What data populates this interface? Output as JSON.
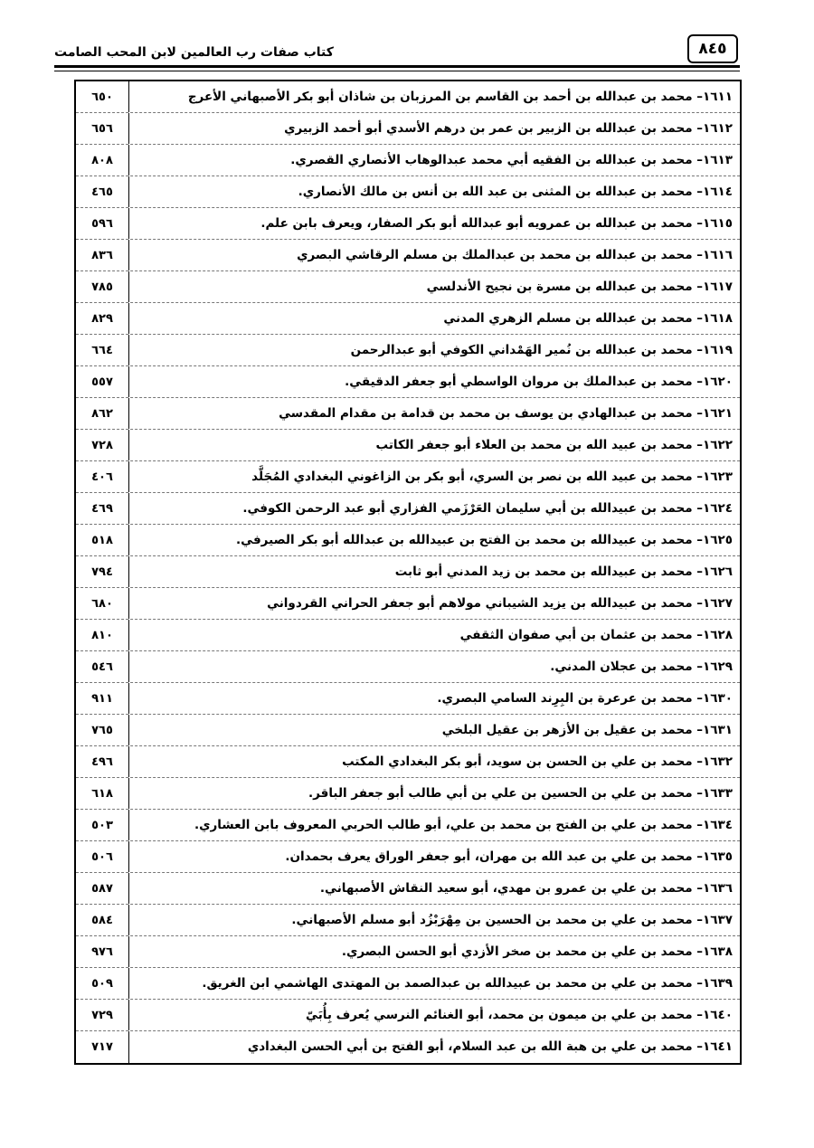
{
  "header": {
    "page_number": "٨٤٥",
    "book_title": "كتاب صفات رب العالمين لابن المحب الصامت"
  },
  "entries": [
    {
      "text": "١٦١١– محمد بن عبدالله بن أحمد بن القاسم بن المرزبان بن شاذان أبو بكر الأصبهاني الأعرج",
      "page": "٦٥٠"
    },
    {
      "text": "١٦١٢– محمد بن عبدالله بن الزبير بن عمر بن درهم الأسدي أبو أحمد الزبيري",
      "page": "٦٥٦"
    },
    {
      "text": "١٦١٣– محمد بن عبدالله بن الفقيه أبي محمد عبدالوهاب الأنصاري القصري.",
      "page": "٨٠٨"
    },
    {
      "text": "١٦١٤– محمد بن عبدالله بن المثنى بن عبد الله بن أنس بن مالك الأنصاري.",
      "page": "٤٦٥"
    },
    {
      "text": "١٦١٥– محمد بن عبدالله بن عمرويه أبو عبدالله أبو بكر الصفار، ويعرف بابن علم.",
      "page": "٥٩٦"
    },
    {
      "text": "١٦١٦– محمد بن عبدالله بن محمد بن عبدالملك بن مسلم الرقاشي البصري",
      "page": "٨٣٦"
    },
    {
      "text": "١٦١٧– محمد بن عبدالله بن مسرة بن نجيح الأندلسي",
      "page": "٧٨٥"
    },
    {
      "text": "١٦١٨– محمد بن عبدالله بن مسلم الزهري المدني",
      "page": "٨٢٩"
    },
    {
      "text": "١٦١٩– محمد بن عبدالله بن نُمير الهَمْداني الكوفي أبو عبدالرحمن",
      "page": "٦٦٤"
    },
    {
      "text": "١٦٢٠– محمد بن عبدالملك بن مروان الواسطي أبو جعفر الدقيقي.",
      "page": "٥٥٧"
    },
    {
      "text": "١٦٢١– محمد بن عبدالهادي بن يوسف بن محمد بن قدامة بن مقدام المقدسي",
      "page": "٨٦٢"
    },
    {
      "text": "١٦٢٢– محمد بن عبيد الله بن محمد بن العلاء أبو جعفر الكاتب",
      "page": "٧٢٨"
    },
    {
      "text": "١٦٢٣– محمد بن عبيد الله بن نصر بن السري، أبو بكر بن الزاغوني البغدادي المُجَلَّد",
      "page": "٤٠٦"
    },
    {
      "text": "١٦٢٤– محمد بن عبيدالله بن أبي سليمان العَرْزَمي الفزاري أبو عبد الرحمن الكوفي.",
      "page": "٤٦٩"
    },
    {
      "text": "١٦٢٥– محمد بن عبيدالله بن محمد بن الفتح بن عبيدالله بن عبدالله أبو بكر الصيرفي.",
      "page": "٥١٨"
    },
    {
      "text": "١٦٢٦– محمد بن عبيدالله بن محمد بن زيد المدني أبو ثابت",
      "page": "٧٩٤"
    },
    {
      "text": "١٦٢٧– محمد بن عبيدالله بن يزيد الشيباني مولاهم أبو جعفر الحراني القردواني",
      "page": "٦٨٠"
    },
    {
      "text": "١٦٢٨– محمد بن عثمان بن أبي صفوان الثقفي",
      "page": "٨١٠"
    },
    {
      "text": "١٦٢٩– محمد بن عجلان المدني.",
      "page": "٥٤٦"
    },
    {
      "text": "١٦٣٠– محمد بن عرعرة بن البِرِند السامي البصري.",
      "page": "٩١١"
    },
    {
      "text": "١٦٣١– محمد بن عقيل بن الأزهر بن عقيل البلخي",
      "page": "٧٦٥"
    },
    {
      "text": "١٦٣٢– محمد بن علي بن الحسن بن سويد، أبو بكر البغدادي المكتب",
      "page": "٤٩٦"
    },
    {
      "text": "١٦٣٣– محمد بن علي بن الحسين بن علي بن أبي طالب أبو جعفر الباقر.",
      "page": "٦١٨"
    },
    {
      "text": "١٦٣٤– محمد بن علي بن الفتح بن محمد بن علي، أبو طالب الحربي المعروف بابن العشاري.",
      "page": "٥٠٣"
    },
    {
      "text": "١٦٣٥– محمد بن علي بن عبد الله بن مهران، أبو جعفر الوراق يعرف بحمدان.",
      "page": "٥٠٦"
    },
    {
      "text": "١٦٣٦– محمد بن علي بن عمرو بن مهدي، أبو سعيد النقاش الأصبهاني.",
      "page": "٥٨٧"
    },
    {
      "text": "١٦٣٧– محمد بن علي بن محمد بن الحسين بن مِهْرَبْزُد أبو مسلم الأصبهاني.",
      "page": "٥٨٤"
    },
    {
      "text": "١٦٣٨– محمد بن علي بن محمد بن صخر الأزدي أبو الحسن البصري.",
      "page": "٩٧٦"
    },
    {
      "text": "١٦٣٩– محمد بن علي بن محمد بن عبيدالله بن عبدالصمد بن المهتدى الهاشمي ابن الغريق.",
      "page": "٥٠٩"
    },
    {
      "text": "١٦٤٠– محمد بن علي بن ميمون بن محمد، أبو الغنائم النرسي يُعرف بِأُبَيّ",
      "page": "٧٢٩"
    },
    {
      "text": "١٦٤١– محمد بن علي بن هبة الله بن عبد السلام، أبو الفتح بن أبي الحسن البغدادي",
      "page": "٧١٧"
    }
  ]
}
